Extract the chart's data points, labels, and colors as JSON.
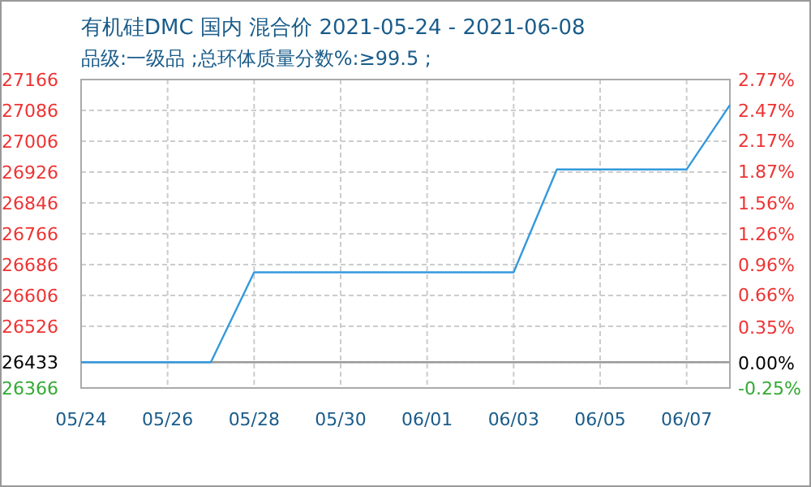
{
  "chart_data": {
    "type": "line",
    "title": "有机硅DMC 国内 混合价 2021-05-24 - 2021-06-08",
    "subtitle": "品级:一级品 ;总环体质量分数%:≥99.5 ;",
    "x": [
      "2021-05-24",
      "2021-05-25",
      "2021-05-26",
      "2021-05-27",
      "2021-05-28",
      "2021-05-29",
      "2021-05-30",
      "2021-05-31",
      "2021-06-01",
      "2021-06-02",
      "2021-06-03",
      "2021-06-04",
      "2021-06-05",
      "2021-06-06",
      "2021-06-07",
      "2021-06-08"
    ],
    "values": [
      26433,
      26433,
      26433,
      26433,
      26666,
      26666,
      26666,
      26666,
      26666,
      26666,
      26666,
      26933,
      26933,
      26933,
      26933,
      27100
    ],
    "color": "#3399dd",
    "xlim": [
      "2021-05-24",
      "2021-06-08"
    ],
    "xticks": [
      {
        "value": "2021-05-24",
        "label": "05/24"
      },
      {
        "value": "2021-05-26",
        "label": "05/26"
      },
      {
        "value": "2021-05-28",
        "label": "05/28"
      },
      {
        "value": "2021-05-30",
        "label": "05/30"
      },
      {
        "value": "2021-06-01",
        "label": "06/01"
      },
      {
        "value": "2021-06-03",
        "label": "06/03"
      },
      {
        "value": "2021-06-05",
        "label": "06/05"
      },
      {
        "value": "2021-06-07",
        "label": "06/07"
      }
    ],
    "ylim": [
      26366,
      27166
    ],
    "yticks": [
      27166,
      27086,
      27006,
      26926,
      26846,
      26766,
      26686,
      26606,
      26526,
      26433,
      26366
    ],
    "y2lim": [
      -0.25,
      2.77
    ],
    "y2ticks": [
      {
        "value": 2.77,
        "label": "2.77%"
      },
      {
        "value": 2.47,
        "label": "2.47%"
      },
      {
        "value": 2.17,
        "label": "2.17%"
      },
      {
        "value": 1.87,
        "label": "1.87%"
      },
      {
        "value": 1.56,
        "label": "1.56%"
      },
      {
        "value": 1.26,
        "label": "1.26%"
      },
      {
        "value": 0.96,
        "label": "0.96%"
      },
      {
        "value": 0.66,
        "label": "0.66%"
      },
      {
        "value": 0.35,
        "label": "0.35%"
      },
      {
        "value": 0.0,
        "label": "0.00%"
      },
      {
        "value": -0.25,
        "label": "-0.25%"
      }
    ],
    "grid": true,
    "ref_lines": [
      {
        "axis": "y",
        "value": 26433,
        "color": "#999999"
      }
    ]
  }
}
